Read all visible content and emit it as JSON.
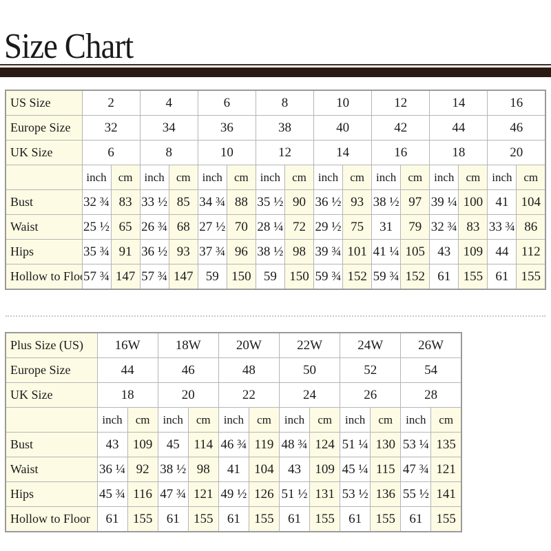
{
  "title": "Size Chart",
  "colors": {
    "label_bg": "#fdfbe4",
    "rule": "#2a1a14",
    "border": "#b5b5b5"
  },
  "standard": {
    "size_rows": [
      {
        "label": "US Size",
        "values": [
          "2",
          "4",
          "6",
          "8",
          "10",
          "12",
          "14",
          "16"
        ]
      },
      {
        "label": "Europe Size",
        "values": [
          "32",
          "34",
          "36",
          "38",
          "40",
          "42",
          "44",
          "46"
        ]
      },
      {
        "label": "UK Size",
        "values": [
          "6",
          "8",
          "10",
          "12",
          "14",
          "16",
          "18",
          "20"
        ]
      }
    ],
    "units": [
      "inch",
      "cm"
    ],
    "measure_rows": [
      {
        "label": "Bust",
        "values": [
          "32 ¾",
          "83",
          "33 ½",
          "85",
          "34 ¾",
          "88",
          "35 ½",
          "90",
          "36 ½",
          "93",
          "38 ½",
          "97",
          "39 ¼",
          "100",
          "41",
          "104"
        ]
      },
      {
        "label": "Waist",
        "values": [
          "25 ½",
          "65",
          "26 ¾",
          "68",
          "27 ½",
          "70",
          "28 ¼",
          "72",
          "29 ½",
          "75",
          "31",
          "79",
          "32 ¾",
          "83",
          "33 ¾",
          "86"
        ]
      },
      {
        "label": "Hips",
        "values": [
          "35 ¾",
          "91",
          "36 ½",
          "93",
          "37 ¾",
          "96",
          "38 ½",
          "98",
          "39 ¾",
          "101",
          "41 ¼",
          "105",
          "43",
          "109",
          "44",
          "112"
        ]
      },
      {
        "label": "Hollow to Floor",
        "values": [
          "57 ¾",
          "147",
          "57 ¾",
          "147",
          "59",
          "150",
          "59",
          "150",
          "59 ¾",
          "152",
          "59 ¾",
          "152",
          "61",
          "155",
          "61",
          "155"
        ]
      }
    ]
  },
  "plus": {
    "size_rows": [
      {
        "label": "Plus Size (US)",
        "values": [
          "16W",
          "18W",
          "20W",
          "22W",
          "24W",
          "26W"
        ]
      },
      {
        "label": "Europe Size",
        "values": [
          "44",
          "46",
          "48",
          "50",
          "52",
          "54"
        ]
      },
      {
        "label": "UK Size",
        "values": [
          "18",
          "20",
          "22",
          "24",
          "26",
          "28"
        ]
      }
    ],
    "units": [
      "inch",
      "cm"
    ],
    "measure_rows": [
      {
        "label": "Bust",
        "values": [
          "43",
          "109",
          "45",
          "114",
          "46 ¾",
          "119",
          "48 ¾",
          "124",
          "51 ¼",
          "130",
          "53 ¼",
          "135"
        ]
      },
      {
        "label": "Waist",
        "values": [
          "36 ¼",
          "92",
          "38 ½",
          "98",
          "41",
          "104",
          "43",
          "109",
          "45 ¼",
          "115",
          "47 ¾",
          "121"
        ]
      },
      {
        "label": "Hips",
        "values": [
          "45 ¾",
          "116",
          "47 ¾",
          "121",
          "49 ½",
          "126",
          "51 ½",
          "131",
          "53 ½",
          "136",
          "55 ½",
          "141"
        ]
      },
      {
        "label": "Hollow to Floor",
        "values": [
          "61",
          "155",
          "61",
          "155",
          "61",
          "155",
          "61",
          "155",
          "61",
          "155",
          "61",
          "155"
        ]
      }
    ]
  }
}
